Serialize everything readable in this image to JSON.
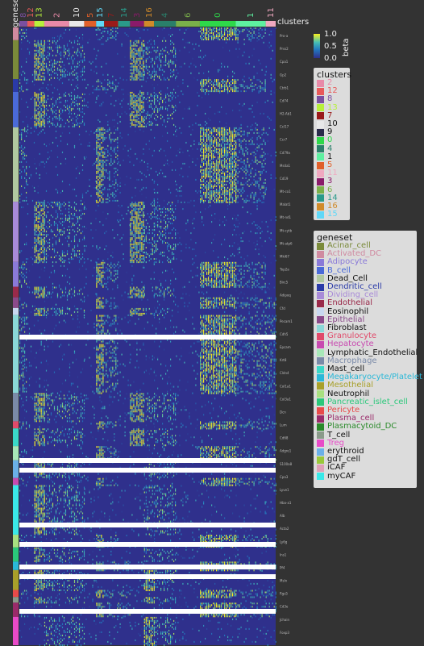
{
  "chart_data": {
    "type": "heatmap",
    "title": "",
    "xlabel": "",
    "ylabel": "",
    "column_annotation_title": "clusters",
    "row_annotation_title": "geneset",
    "top_column_labels": [
      "8",
      "12",
      "13",
      "2",
      "10",
      "5",
      "15",
      "7",
      "14",
      "3",
      "16",
      "4",
      "6",
      "0",
      "1",
      "11"
    ],
    "colorbar": {
      "title": "beta",
      "ticks": [
        "0.0",
        "0.5",
        "1.0"
      ],
      "range": [
        0,
        1
      ]
    },
    "legends": {
      "clusters": {
        "title": "clusters",
        "items": [
          {
            "label": "2",
            "color": "#e88aa8"
          },
          {
            "label": "12",
            "color": "#e85a5a"
          },
          {
            "label": "8",
            "color": "#7a4fa0"
          },
          {
            "label": "13",
            "color": "#b7f03c"
          },
          {
            "label": "7",
            "color": "#9a1a1a"
          },
          {
            "label": "10",
            "color": "#e8e8e8"
          },
          {
            "label": "9",
            "color": "#2a2a4a"
          },
          {
            "label": "0",
            "color": "#2ed84a"
          },
          {
            "label": "4",
            "color": "#2a7f6a"
          },
          {
            "label": "1",
            "color": "#5ef0a0"
          },
          {
            "label": "5",
            "color": "#e0602a"
          },
          {
            "label": "11",
            "color": "#f0a8c0"
          },
          {
            "label": "3",
            "color": "#8a1a6a"
          },
          {
            "label": "6",
            "color": "#7ab04a"
          },
          {
            "label": "14",
            "color": "#2a9a8a"
          },
          {
            "label": "16",
            "color": "#d08a2a"
          },
          {
            "label": "15",
            "color": "#60d8f8"
          }
        ]
      },
      "geneset": {
        "title": "geneset",
        "items": [
          {
            "label": "Acinar_cell",
            "color": "#7a8a3a"
          },
          {
            "label": "Activated_DC",
            "color": "#d08aa0"
          },
          {
            "label": "Adipocyte",
            "color": "#8a7ad8"
          },
          {
            "label": "B_cell",
            "color": "#4a6ad8"
          },
          {
            "label": "Dead_Cell",
            "color": "#b0c8a0"
          },
          {
            "label": "Dendritic_cell",
            "color": "#2a3aa8"
          },
          {
            "label": "Dividing_cell",
            "color": "#a88ad8"
          },
          {
            "label": "Endothelial",
            "color": "#9a2a4a"
          },
          {
            "label": "Eosinophil",
            "color": "#c8d8f0"
          },
          {
            "label": "Epithelial",
            "color": "#8a4a8a"
          },
          {
            "label": "Fibroblast",
            "color": "#8ad8d8"
          },
          {
            "label": "Granulocyte",
            "color": "#e04a6a"
          },
          {
            "label": "Hepatocyte",
            "color": "#c84ab0"
          },
          {
            "label": "Lymphatic_Endothelial",
            "color": "#a8e8b8"
          },
          {
            "label": "Macrophage",
            "color": "#7a8aa8"
          },
          {
            "label": "Mast_cell",
            "color": "#3ad8c8"
          },
          {
            "label": "Megakaryocyte/Platelet",
            "color": "#2ab8d8"
          },
          {
            "label": "Mesothelial",
            "color": "#a8a02a"
          },
          {
            "label": "Neutrophil",
            "color": "#a8e080"
          },
          {
            "label": "Pancreatic_islet_cell",
            "color": "#2ac87a"
          },
          {
            "label": "Pericyte",
            "color": "#e84a4a"
          },
          {
            "label": "Plasma_cell",
            "color": "#9a2a6a"
          },
          {
            "label": "Plasmacytoid_DC",
            "color": "#2a8a2a"
          },
          {
            "label": "T_cell",
            "color": "#8a9a8a"
          },
          {
            "label": "Treg",
            "color": "#e84ac8"
          },
          {
            "label": "erythroid",
            "color": "#6ab0e8"
          },
          {
            "label": "gdT_cell",
            "color": "#9ac83a"
          },
          {
            "label": "iCAF",
            "color": "#e0a0b8"
          },
          {
            "label": "myCAF",
            "color": "#3ae8e8"
          }
        ]
      }
    },
    "top_label_colors": {
      "8": "#7a4fa0",
      "12": "#e85a5a",
      "13": "#b7f03c",
      "2": "#e88aa8",
      "10": "#e8e8e8",
      "5": "#e0602a",
      "15": "#60d8f8",
      "7": "#9a1a1a",
      "14": "#2a9a8a",
      "3": "#8a1a6a",
      "16": "#d08a2a",
      "4": "#2a7f6a",
      "6": "#7ab04a",
      "0": "#2ed84a",
      "1": "#5ef0a0",
      "11": "#f0a8c0"
    },
    "column_cluster_order": [
      "8",
      "12",
      "13",
      "2",
      "10",
      "5",
      "15",
      "7",
      "14",
      "3",
      "16",
      "4",
      "6",
      "0",
      "1",
      "11"
    ],
    "column_cluster_widths": [
      8,
      7,
      10,
      25,
      15,
      12,
      8,
      14,
      12,
      14,
      10,
      22,
      24,
      36,
      30,
      10
    ],
    "row_geneset_order": [
      "Activated_DC",
      "Acinar_cell",
      "Dendritic_cell",
      "B_cell",
      "Dead_Cell",
      "Dividing_cell",
      "Adipocyte",
      "Endothelial",
      "Epithelial",
      "Eosinophil",
      "Fibroblast",
      "Macrophage",
      "Granulocyte",
      "Mast_cell",
      "Lymphatic_Endothelial",
      "erythroid",
      "Hepatocyte",
      "myCAF",
      "Neutrophil",
      "Pancreatic_islet_cell",
      "Megakaryocyte/Platelet",
      "Mesothelial",
      "Pericyte",
      "T_cell",
      "Plasma_cell",
      "Treg"
    ],
    "row_geneset_heights": [
      18,
      55,
      18,
      50,
      105,
      85,
      35,
      15,
      15,
      10,
      110,
      40,
      10,
      25,
      20,
      25,
      10,
      70,
      18,
      20,
      12,
      28,
      10,
      8,
      20,
      40
    ],
    "row_label_text": [
      "Pro-a",
      "Prss2",
      "Cpa1",
      "Gp2",
      "Ctrb1",
      "Cd74",
      "H2-Ab1",
      "Ccl17",
      "Ccr7",
      "Cd79a",
      "Ms4a1",
      "Cd19",
      "Mt-co1",
      "Malat1",
      "Mt-nd1",
      "Mt-cytb",
      "Mt-atp6",
      "Mki67",
      "Top2a",
      "Birc5",
      "Adipoq",
      "Cfd",
      "Pecam1",
      "Cdh5",
      "Epcam",
      "Krt8",
      "Cldn4",
      "Col1a1",
      "Col3a1",
      "Dcn",
      "Lum",
      "Cd68",
      "Adgre1",
      "S100a8",
      "Cpa3",
      "Lyve1",
      "Hba-a1",
      "Alb",
      "Acta2",
      "Ly6g",
      "Ins1",
      "Pf4",
      "Msln",
      "Rgs5",
      "Cd3e",
      "Jchain",
      "Foxp3"
    ]
  }
}
